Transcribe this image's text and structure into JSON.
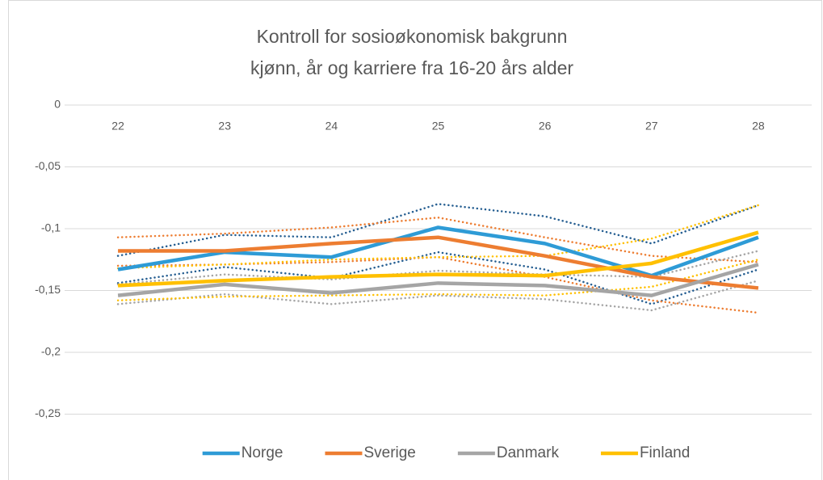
{
  "chart_data": {
    "type": "line",
    "title": [
      "Kontroll for sosioøkonomisk bakgrunn",
      "kjønn, år og karriere fra 16-20 års alder"
    ],
    "categories": [
      "22",
      "23",
      "24",
      "25",
      "26",
      "27",
      "28"
    ],
    "ylim": [
      -0.3,
      0
    ],
    "yticks": [
      0,
      {
        "value": -0.05,
        "label": "-0,05"
      },
      {
        "value": -0.1,
        "label": "-0,1"
      },
      {
        "value": -0.15,
        "label": "-0,15"
      },
      {
        "value": -0.2,
        "label": "-0,2"
      },
      {
        "value": -0.25,
        "label": "-0,25"
      }
    ],
    "grid": true,
    "legend": "bottom",
    "series": [
      {
        "name": "Norge",
        "color": "#2e9bd6",
        "bound_color": "#255e91",
        "values": [
          -0.133,
          -0.119,
          -0.123,
          -0.099,
          -0.112,
          -0.138,
          -0.107
        ],
        "upper": [
          -0.122,
          -0.105,
          -0.107,
          -0.08,
          -0.09,
          -0.112,
          -0.081
        ],
        "lower": [
          -0.144,
          -0.131,
          -0.14,
          -0.119,
          -0.133,
          -0.161,
          -0.133
        ]
      },
      {
        "name": "Sverige",
        "color": "#ed7d31",
        "bound_color": "#ed7d31",
        "values": [
          -0.118,
          -0.118,
          -0.112,
          -0.107,
          -0.122,
          -0.139,
          -0.148
        ],
        "upper": [
          -0.107,
          -0.104,
          -0.099,
          -0.091,
          -0.107,
          -0.122,
          -0.127
        ],
        "lower": [
          -0.13,
          -0.129,
          -0.127,
          -0.123,
          -0.139,
          -0.158,
          -0.168
        ]
      },
      {
        "name": "Danmark",
        "color": "#a5a5a5",
        "bound_color": "#a5a5a5",
        "values": [
          -0.154,
          -0.145,
          -0.152,
          -0.144,
          -0.146,
          -0.154,
          -0.129
        ],
        "upper": [
          -0.145,
          -0.137,
          -0.141,
          -0.134,
          -0.137,
          -0.139,
          -0.118
        ],
        "lower": [
          -0.161,
          -0.153,
          -0.161,
          -0.154,
          -0.157,
          -0.166,
          -0.142
        ]
      },
      {
        "name": "Finland",
        "color": "#ffc000",
        "bound_color": "#ffc000",
        "values": [
          -0.146,
          -0.142,
          -0.139,
          -0.137,
          -0.138,
          -0.128,
          -0.103
        ],
        "upper": [
          -0.132,
          -0.129,
          -0.125,
          -0.123,
          -0.122,
          -0.108,
          -0.081
        ],
        "lower": [
          -0.158,
          -0.155,
          -0.154,
          -0.153,
          -0.154,
          -0.147,
          -0.125
        ]
      }
    ]
  }
}
